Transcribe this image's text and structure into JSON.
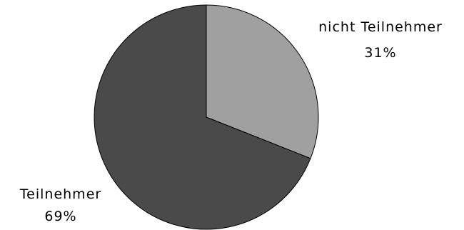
{
  "chart_data": {
    "type": "pie",
    "categories": [
      "nicht Teilnehmer",
      "Teilnehmer"
    ],
    "values": [
      31,
      69
    ],
    "value_labels": [
      "31%",
      "69%"
    ],
    "colors": [
      "#a0a0a0",
      "#4a4a4a"
    ],
    "start": "top, clockwise",
    "legend": "none"
  }
}
